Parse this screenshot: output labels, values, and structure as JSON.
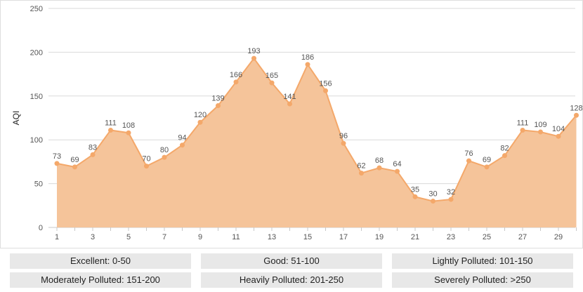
{
  "chart_data": {
    "type": "area",
    "ylabel": "AQI",
    "xlabel": "",
    "ylim": [
      0,
      250
    ],
    "yticks": [
      0,
      50,
      100,
      150,
      200,
      250
    ],
    "xticks": [
      1,
      3,
      5,
      7,
      9,
      11,
      13,
      15,
      17,
      19,
      21,
      23,
      25,
      27,
      29
    ],
    "x": [
      1,
      2,
      3,
      4,
      5,
      6,
      7,
      8,
      9,
      10,
      11,
      12,
      13,
      14,
      15,
      16,
      17,
      18,
      19,
      20,
      21,
      22,
      23,
      24,
      25,
      26,
      27,
      28,
      29,
      30
    ],
    "values": [
      73,
      69,
      83,
      111,
      108,
      70,
      80,
      94,
      120,
      139,
      166,
      193,
      165,
      141,
      186,
      156,
      96,
      62,
      68,
      64,
      35,
      30,
      32,
      76,
      69,
      82,
      111,
      109,
      104,
      128
    ],
    "data_labels": [
      "73",
      "69",
      "83",
      "111",
      "108",
      "70",
      "80",
      "94",
      "120",
      "139",
      "166",
      "193",
      "165",
      "141",
      "186",
      "156",
      "96",
      "62",
      "68",
      "64",
      "35",
      "30",
      "32",
      "76",
      "69",
      "82",
      "111",
      "109",
      "104",
      "128"
    ],
    "grid": true,
    "colors": {
      "line": "#f4a86a",
      "fill": "#f5c49a",
      "marker": "#f4a86a",
      "grid": "#d9d9d9",
      "text": "#555555"
    }
  },
  "legend": {
    "items": [
      {
        "label": "Excellent: 0-50"
      },
      {
        "label": "Good: 51-100"
      },
      {
        "label": "Lightly Polluted: 101-150"
      },
      {
        "label": "Moderately Polluted: 151-200"
      },
      {
        "label": "Heavily Polluted: 201-250"
      },
      {
        "label": "Severely Polluted: >250"
      }
    ]
  }
}
